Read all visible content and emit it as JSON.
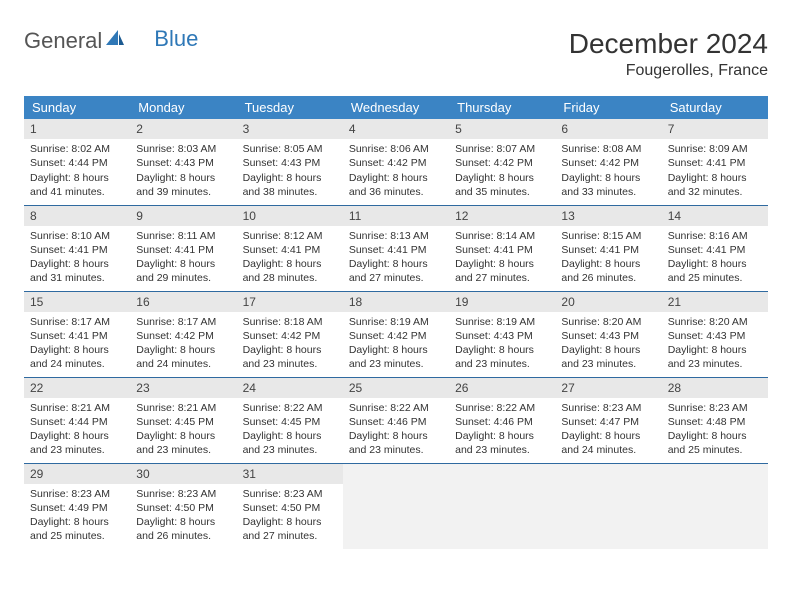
{
  "logo": {
    "part1": "General",
    "part2": "Blue"
  },
  "title": "December 2024",
  "location": "Fougerolles, France",
  "colors": {
    "header_bg": "#3b84c4",
    "header_text": "#ffffff",
    "day_num_bg": "#e8e8e8",
    "row_border": "#2f6aa0",
    "empty_bg": "#f2f2f2",
    "logo_accent": "#2f78b7"
  },
  "weekdays": [
    "Sunday",
    "Monday",
    "Tuesday",
    "Wednesday",
    "Thursday",
    "Friday",
    "Saturday"
  ],
  "weeks": [
    [
      {
        "n": "1",
        "sunrise": "Sunrise: 8:02 AM",
        "sunset": "Sunset: 4:44 PM",
        "day1": "Daylight: 8 hours",
        "day2": "and 41 minutes."
      },
      {
        "n": "2",
        "sunrise": "Sunrise: 8:03 AM",
        "sunset": "Sunset: 4:43 PM",
        "day1": "Daylight: 8 hours",
        "day2": "and 39 minutes."
      },
      {
        "n": "3",
        "sunrise": "Sunrise: 8:05 AM",
        "sunset": "Sunset: 4:43 PM",
        "day1": "Daylight: 8 hours",
        "day2": "and 38 minutes."
      },
      {
        "n": "4",
        "sunrise": "Sunrise: 8:06 AM",
        "sunset": "Sunset: 4:42 PM",
        "day1": "Daylight: 8 hours",
        "day2": "and 36 minutes."
      },
      {
        "n": "5",
        "sunrise": "Sunrise: 8:07 AM",
        "sunset": "Sunset: 4:42 PM",
        "day1": "Daylight: 8 hours",
        "day2": "and 35 minutes."
      },
      {
        "n": "6",
        "sunrise": "Sunrise: 8:08 AM",
        "sunset": "Sunset: 4:42 PM",
        "day1": "Daylight: 8 hours",
        "day2": "and 33 minutes."
      },
      {
        "n": "7",
        "sunrise": "Sunrise: 8:09 AM",
        "sunset": "Sunset: 4:41 PM",
        "day1": "Daylight: 8 hours",
        "day2": "and 32 minutes."
      }
    ],
    [
      {
        "n": "8",
        "sunrise": "Sunrise: 8:10 AM",
        "sunset": "Sunset: 4:41 PM",
        "day1": "Daylight: 8 hours",
        "day2": "and 31 minutes."
      },
      {
        "n": "9",
        "sunrise": "Sunrise: 8:11 AM",
        "sunset": "Sunset: 4:41 PM",
        "day1": "Daylight: 8 hours",
        "day2": "and 29 minutes."
      },
      {
        "n": "10",
        "sunrise": "Sunrise: 8:12 AM",
        "sunset": "Sunset: 4:41 PM",
        "day1": "Daylight: 8 hours",
        "day2": "and 28 minutes."
      },
      {
        "n": "11",
        "sunrise": "Sunrise: 8:13 AM",
        "sunset": "Sunset: 4:41 PM",
        "day1": "Daylight: 8 hours",
        "day2": "and 27 minutes."
      },
      {
        "n": "12",
        "sunrise": "Sunrise: 8:14 AM",
        "sunset": "Sunset: 4:41 PM",
        "day1": "Daylight: 8 hours",
        "day2": "and 27 minutes."
      },
      {
        "n": "13",
        "sunrise": "Sunrise: 8:15 AM",
        "sunset": "Sunset: 4:41 PM",
        "day1": "Daylight: 8 hours",
        "day2": "and 26 minutes."
      },
      {
        "n": "14",
        "sunrise": "Sunrise: 8:16 AM",
        "sunset": "Sunset: 4:41 PM",
        "day1": "Daylight: 8 hours",
        "day2": "and 25 minutes."
      }
    ],
    [
      {
        "n": "15",
        "sunrise": "Sunrise: 8:17 AM",
        "sunset": "Sunset: 4:41 PM",
        "day1": "Daylight: 8 hours",
        "day2": "and 24 minutes."
      },
      {
        "n": "16",
        "sunrise": "Sunrise: 8:17 AM",
        "sunset": "Sunset: 4:42 PM",
        "day1": "Daylight: 8 hours",
        "day2": "and 24 minutes."
      },
      {
        "n": "17",
        "sunrise": "Sunrise: 8:18 AM",
        "sunset": "Sunset: 4:42 PM",
        "day1": "Daylight: 8 hours",
        "day2": "and 23 minutes."
      },
      {
        "n": "18",
        "sunrise": "Sunrise: 8:19 AM",
        "sunset": "Sunset: 4:42 PM",
        "day1": "Daylight: 8 hours",
        "day2": "and 23 minutes."
      },
      {
        "n": "19",
        "sunrise": "Sunrise: 8:19 AM",
        "sunset": "Sunset: 4:43 PM",
        "day1": "Daylight: 8 hours",
        "day2": "and 23 minutes."
      },
      {
        "n": "20",
        "sunrise": "Sunrise: 8:20 AM",
        "sunset": "Sunset: 4:43 PM",
        "day1": "Daylight: 8 hours",
        "day2": "and 23 minutes."
      },
      {
        "n": "21",
        "sunrise": "Sunrise: 8:20 AM",
        "sunset": "Sunset: 4:43 PM",
        "day1": "Daylight: 8 hours",
        "day2": "and 23 minutes."
      }
    ],
    [
      {
        "n": "22",
        "sunrise": "Sunrise: 8:21 AM",
        "sunset": "Sunset: 4:44 PM",
        "day1": "Daylight: 8 hours",
        "day2": "and 23 minutes."
      },
      {
        "n": "23",
        "sunrise": "Sunrise: 8:21 AM",
        "sunset": "Sunset: 4:45 PM",
        "day1": "Daylight: 8 hours",
        "day2": "and 23 minutes."
      },
      {
        "n": "24",
        "sunrise": "Sunrise: 8:22 AM",
        "sunset": "Sunset: 4:45 PM",
        "day1": "Daylight: 8 hours",
        "day2": "and 23 minutes."
      },
      {
        "n": "25",
        "sunrise": "Sunrise: 8:22 AM",
        "sunset": "Sunset: 4:46 PM",
        "day1": "Daylight: 8 hours",
        "day2": "and 23 minutes."
      },
      {
        "n": "26",
        "sunrise": "Sunrise: 8:22 AM",
        "sunset": "Sunset: 4:46 PM",
        "day1": "Daylight: 8 hours",
        "day2": "and 23 minutes."
      },
      {
        "n": "27",
        "sunrise": "Sunrise: 8:23 AM",
        "sunset": "Sunset: 4:47 PM",
        "day1": "Daylight: 8 hours",
        "day2": "and 24 minutes."
      },
      {
        "n": "28",
        "sunrise": "Sunrise: 8:23 AM",
        "sunset": "Sunset: 4:48 PM",
        "day1": "Daylight: 8 hours",
        "day2": "and 25 minutes."
      }
    ],
    [
      {
        "n": "29",
        "sunrise": "Sunrise: 8:23 AM",
        "sunset": "Sunset: 4:49 PM",
        "day1": "Daylight: 8 hours",
        "day2": "and 25 minutes."
      },
      {
        "n": "30",
        "sunrise": "Sunrise: 8:23 AM",
        "sunset": "Sunset: 4:50 PM",
        "day1": "Daylight: 8 hours",
        "day2": "and 26 minutes."
      },
      {
        "n": "31",
        "sunrise": "Sunrise: 8:23 AM",
        "sunset": "Sunset: 4:50 PM",
        "day1": "Daylight: 8 hours",
        "day2": "and 27 minutes."
      },
      null,
      null,
      null,
      null
    ]
  ]
}
